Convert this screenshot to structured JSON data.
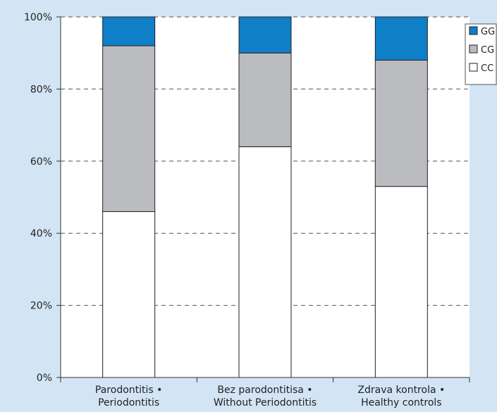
{
  "chart_data": {
    "type": "bar",
    "stacked": true,
    "categories": [
      [
        "Parodontitis •",
        "Periodontitis"
      ],
      [
        "Bez parodontitisa •",
        "Without Periodontitis"
      ],
      [
        "Zdrava kontrola •",
        "Healthy controls"
      ]
    ],
    "series": [
      {
        "name": "CC",
        "values": [
          46,
          64,
          53
        ],
        "color": "#ffffff"
      },
      {
        "name": "CG",
        "values": [
          46,
          26,
          35
        ],
        "color": "#bbbcbf"
      },
      {
        "name": "GG",
        "values": [
          8,
          10,
          12
        ],
        "color": "#0f7fc7"
      }
    ],
    "ylim": [
      0,
      100
    ],
    "yticks": [
      "0%",
      "20%",
      "40%",
      "60%",
      "80%",
      "100%"
    ],
    "grid": "dashed-horizontal",
    "legend_position": "top-right",
    "legend_order": [
      "GG",
      "CG",
      "CC"
    ],
    "xlabel": "",
    "ylabel": "",
    "title": ""
  }
}
